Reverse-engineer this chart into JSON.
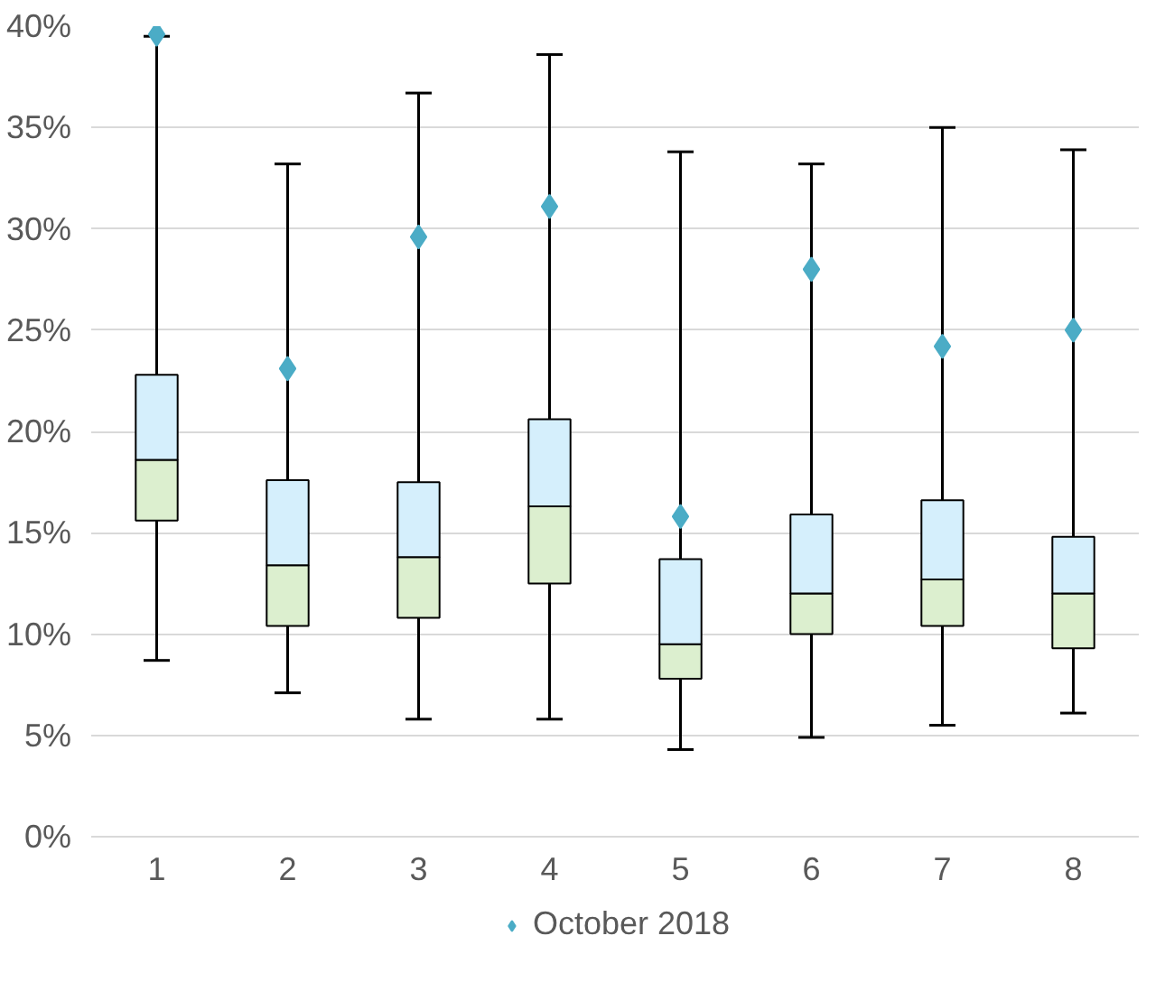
{
  "chart_data": {
    "type": "box",
    "categories": [
      "1",
      "2",
      "3",
      "4",
      "5",
      "6",
      "7",
      "8"
    ],
    "ylim": [
      0,
      40
    ],
    "yticks": [
      {
        "value": 0,
        "label": "0%"
      },
      {
        "value": 5,
        "label": "5%"
      },
      {
        "value": 10,
        "label": "10%"
      },
      {
        "value": 15,
        "label": "15%"
      },
      {
        "value": 20,
        "label": "20%"
      },
      {
        "value": 25,
        "label": "25%"
      },
      {
        "value": 30,
        "label": "30%"
      },
      {
        "value": 35,
        "label": "35%"
      },
      {
        "value": 40,
        "label": "40%"
      }
    ],
    "grid": "y",
    "legend": "bottom",
    "series": [
      {
        "type": "box",
        "colors": [
          [
            "#d5effc",
            "#dcefcf"
          ],
          [
            "#d5effc",
            "#dcefcf"
          ],
          [
            "#d5effc",
            "#dcefcf"
          ],
          [
            "#d5effc",
            "#dcefcf"
          ],
          [
            "#d5effc",
            "#dcefcf"
          ],
          [
            "#d5effc",
            "#dcefcf"
          ],
          [
            "#d5effc",
            "#dcefcf"
          ],
          [
            "#d5effc",
            "#dcefcf"
          ]
        ],
        "boxes": [
          {
            "low": 8.7,
            "q1": 15.6,
            "median": 18.6,
            "q3": 22.8,
            "high": 39.5
          },
          {
            "low": 7.1,
            "q1": 10.4,
            "median": 13.4,
            "q3": 17.6,
            "high": 33.2
          },
          {
            "low": 5.8,
            "q1": 10.8,
            "median": 13.8,
            "q3": 17.5,
            "high": 36.7
          },
          {
            "low": 5.8,
            "q1": 12.5,
            "median": 16.3,
            "q3": 20.6,
            "high": 38.6
          },
          {
            "low": 4.3,
            "q1": 7.8,
            "median": 9.5,
            "q3": 13.7,
            "high": 33.8
          },
          {
            "low": 4.9,
            "q1": 10.0,
            "median": 12.0,
            "q3": 15.9,
            "high": 33.2
          },
          {
            "low": 5.5,
            "q1": 10.4,
            "median": 12.7,
            "q3": 16.6,
            "high": 35.0
          },
          {
            "low": 6.1,
            "q1": 9.3,
            "median": 12.0,
            "q3": 14.8,
            "high": 33.9
          }
        ]
      },
      {
        "type": "scatter",
        "name": "October 2018",
        "color": "#4bacc6",
        "marker": "diamond",
        "x": [
          "1",
          "2",
          "3",
          "4",
          "5",
          "6",
          "7",
          "8"
        ],
        "values": [
          39.6,
          23.1,
          29.6,
          31.1,
          15.8,
          28.0,
          24.2,
          25.0
        ]
      }
    ]
  }
}
